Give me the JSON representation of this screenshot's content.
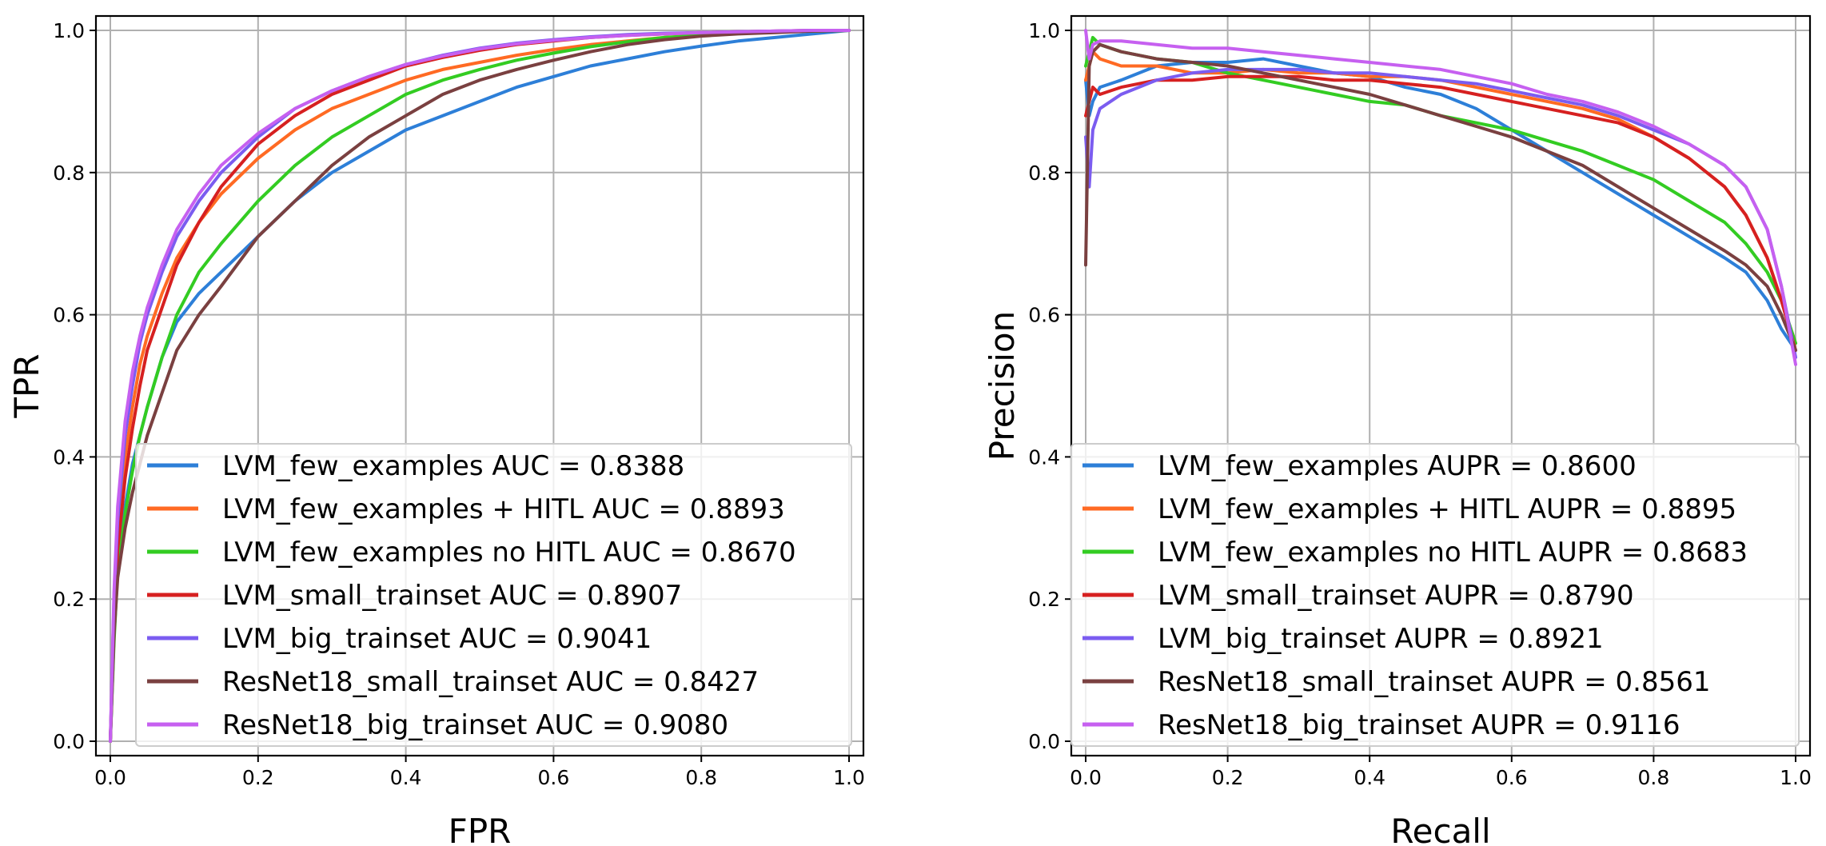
{
  "chart_data": [
    {
      "type": "line",
      "xlabel": "FPR",
      "ylabel": "TPR",
      "xlim": [
        0.0,
        1.0
      ],
      "ylim": [
        0.0,
        1.0
      ],
      "xticks": [
        "0.0",
        "0.2",
        "0.4",
        "0.6",
        "0.8",
        "1.0"
      ],
      "yticks": [
        "0.0",
        "0.2",
        "0.4",
        "0.6",
        "0.8",
        "1.0"
      ],
      "grid": true,
      "legend_position": "lower-right",
      "series": [
        {
          "name": "LVM_few_examples AUC = 0.8388",
          "color": "#2d7fd8",
          "x": [
            0,
            0.005,
            0.01,
            0.02,
            0.03,
            0.04,
            0.05,
            0.07,
            0.09,
            0.12,
            0.15,
            0.2,
            0.25,
            0.3,
            0.35,
            0.4,
            0.45,
            0.5,
            0.55,
            0.6,
            0.65,
            0.7,
            0.75,
            0.8,
            0.85,
            0.9,
            0.95,
            1.0
          ],
          "y": [
            0,
            0.15,
            0.25,
            0.33,
            0.39,
            0.43,
            0.47,
            0.54,
            0.59,
            0.63,
            0.66,
            0.71,
            0.76,
            0.8,
            0.83,
            0.86,
            0.88,
            0.9,
            0.92,
            0.935,
            0.95,
            0.96,
            0.97,
            0.978,
            0.985,
            0.99,
            0.995,
            1.0
          ]
        },
        {
          "name": "LVM_few_examples + HITL AUC = 0.8893",
          "color": "#ff6a23",
          "x": [
            0,
            0.005,
            0.01,
            0.02,
            0.03,
            0.04,
            0.05,
            0.07,
            0.09,
            0.12,
            0.15,
            0.2,
            0.25,
            0.3,
            0.35,
            0.4,
            0.45,
            0.5,
            0.55,
            0.6,
            0.65,
            0.7,
            0.75,
            0.8,
            0.85,
            0.9,
            0.95,
            1.0
          ],
          "y": [
            0,
            0.18,
            0.29,
            0.4,
            0.47,
            0.53,
            0.57,
            0.63,
            0.68,
            0.73,
            0.77,
            0.82,
            0.86,
            0.89,
            0.91,
            0.93,
            0.945,
            0.955,
            0.965,
            0.973,
            0.98,
            0.985,
            0.99,
            0.993,
            0.996,
            0.998,
            0.999,
            1.0
          ]
        },
        {
          "name": "LVM_few_examples no HITL AUC = 0.8670",
          "color": "#33cc22",
          "x": [
            0,
            0.005,
            0.01,
            0.02,
            0.03,
            0.04,
            0.05,
            0.07,
            0.09,
            0.12,
            0.15,
            0.2,
            0.25,
            0.3,
            0.35,
            0.4,
            0.45,
            0.5,
            0.55,
            0.6,
            0.65,
            0.7,
            0.75,
            0.8,
            0.85,
            0.9,
            0.95,
            1.0
          ],
          "y": [
            0,
            0.14,
            0.24,
            0.32,
            0.38,
            0.43,
            0.47,
            0.54,
            0.6,
            0.66,
            0.7,
            0.76,
            0.81,
            0.85,
            0.88,
            0.91,
            0.93,
            0.945,
            0.958,
            0.968,
            0.977,
            0.984,
            0.99,
            0.993,
            0.996,
            0.998,
            0.999,
            1.0
          ]
        },
        {
          "name": "LVM_small_trainset AUC = 0.8907",
          "color": "#d62020",
          "x": [
            0,
            0.005,
            0.01,
            0.02,
            0.03,
            0.04,
            0.05,
            0.07,
            0.09,
            0.12,
            0.15,
            0.2,
            0.25,
            0.3,
            0.35,
            0.4,
            0.45,
            0.5,
            0.55,
            0.6,
            0.65,
            0.7,
            0.75,
            0.8,
            0.85,
            0.9,
            0.95,
            1.0
          ],
          "y": [
            0,
            0.17,
            0.27,
            0.37,
            0.44,
            0.5,
            0.55,
            0.61,
            0.67,
            0.73,
            0.78,
            0.84,
            0.88,
            0.91,
            0.93,
            0.95,
            0.962,
            0.972,
            0.98,
            0.985,
            0.99,
            0.993,
            0.995,
            0.997,
            0.998,
            0.999,
            1.0,
            1.0
          ]
        },
        {
          "name": "LVM_big_trainset AUC = 0.9041",
          "color": "#7b5cf0",
          "x": [
            0,
            0.005,
            0.01,
            0.02,
            0.03,
            0.04,
            0.05,
            0.07,
            0.09,
            0.12,
            0.15,
            0.2,
            0.25,
            0.3,
            0.35,
            0.4,
            0.45,
            0.5,
            0.55,
            0.6,
            0.65,
            0.7,
            0.75,
            0.8,
            0.85,
            0.9,
            0.95,
            1.0
          ],
          "y": [
            0,
            0.2,
            0.31,
            0.43,
            0.5,
            0.56,
            0.6,
            0.66,
            0.71,
            0.76,
            0.8,
            0.85,
            0.89,
            0.915,
            0.935,
            0.952,
            0.965,
            0.975,
            0.982,
            0.987,
            0.991,
            0.994,
            0.996,
            0.997,
            0.998,
            0.999,
            1.0,
            1.0
          ]
        },
        {
          "name": "ResNet18_small_trainset AUC = 0.8427",
          "color": "#7a4040",
          "x": [
            0,
            0.005,
            0.01,
            0.02,
            0.03,
            0.04,
            0.05,
            0.07,
            0.09,
            0.12,
            0.15,
            0.2,
            0.25,
            0.3,
            0.35,
            0.4,
            0.45,
            0.5,
            0.55,
            0.6,
            0.65,
            0.7,
            0.75,
            0.8,
            0.85,
            0.9,
            0.95,
            1.0
          ],
          "y": [
            0,
            0.15,
            0.23,
            0.3,
            0.35,
            0.39,
            0.43,
            0.49,
            0.55,
            0.6,
            0.64,
            0.71,
            0.76,
            0.81,
            0.85,
            0.88,
            0.91,
            0.93,
            0.945,
            0.958,
            0.97,
            0.98,
            0.987,
            0.992,
            0.995,
            0.997,
            0.999,
            1.0
          ]
        },
        {
          "name": "ResNet18_big_trainset AUC = 0.9080",
          "color": "#c660f0",
          "x": [
            0,
            0.005,
            0.01,
            0.02,
            0.03,
            0.04,
            0.05,
            0.07,
            0.09,
            0.12,
            0.15,
            0.2,
            0.25,
            0.3,
            0.35,
            0.4,
            0.45,
            0.5,
            0.55,
            0.6,
            0.65,
            0.7,
            0.75,
            0.8,
            0.85,
            0.9,
            0.95,
            1.0
          ],
          "y": [
            0,
            0.21,
            0.33,
            0.45,
            0.52,
            0.57,
            0.61,
            0.67,
            0.72,
            0.77,
            0.81,
            0.855,
            0.89,
            0.915,
            0.935,
            0.952,
            0.964,
            0.974,
            0.981,
            0.986,
            0.99,
            0.993,
            0.995,
            0.997,
            0.998,
            0.999,
            1.0,
            1.0
          ]
        }
      ]
    },
    {
      "type": "line",
      "xlabel": "Recall",
      "ylabel": "Precision",
      "xlim": [
        0.0,
        1.0
      ],
      "ylim": [
        0.0,
        1.0
      ],
      "xticks": [
        "0.0",
        "0.2",
        "0.4",
        "0.6",
        "0.8",
        "1.0"
      ],
      "yticks": [
        "0.0",
        "0.2",
        "0.4",
        "0.6",
        "0.8",
        "1.0"
      ],
      "grid": true,
      "legend_position": "lower-right",
      "series": [
        {
          "name": "LVM_few_examples AUPR = 0.8600",
          "color": "#2d7fd8",
          "x": [
            0.0,
            0.005,
            0.01,
            0.02,
            0.05,
            0.1,
            0.15,
            0.2,
            0.25,
            0.3,
            0.35,
            0.4,
            0.45,
            0.5,
            0.55,
            0.6,
            0.65,
            0.7,
            0.75,
            0.8,
            0.85,
            0.9,
            0.93,
            0.96,
            0.98,
            1.0
          ],
          "y": [
            0.93,
            0.88,
            0.9,
            0.92,
            0.93,
            0.95,
            0.955,
            0.955,
            0.96,
            0.95,
            0.94,
            0.935,
            0.92,
            0.91,
            0.89,
            0.86,
            0.83,
            0.8,
            0.77,
            0.74,
            0.71,
            0.68,
            0.66,
            0.62,
            0.58,
            0.55
          ]
        },
        {
          "name": "LVM_few_examples + HITL AUPR = 0.8895",
          "color": "#ff6a23",
          "x": [
            0.0,
            0.005,
            0.01,
            0.02,
            0.05,
            0.1,
            0.15,
            0.2,
            0.25,
            0.3,
            0.35,
            0.4,
            0.45,
            0.5,
            0.55,
            0.6,
            0.65,
            0.7,
            0.75,
            0.8,
            0.85,
            0.9,
            0.93,
            0.96,
            0.98,
            1.0
          ],
          "y": [
            0.93,
            0.95,
            0.97,
            0.96,
            0.95,
            0.95,
            0.94,
            0.94,
            0.945,
            0.94,
            0.94,
            0.935,
            0.935,
            0.93,
            0.92,
            0.91,
            0.9,
            0.89,
            0.875,
            0.85,
            0.82,
            0.78,
            0.74,
            0.68,
            0.62,
            0.56
          ]
        },
        {
          "name": "LVM_few_examples no HITL AUPR = 0.8683",
          "color": "#33cc22",
          "x": [
            0.0,
            0.005,
            0.01,
            0.02,
            0.05,
            0.1,
            0.15,
            0.2,
            0.25,
            0.3,
            0.35,
            0.4,
            0.45,
            0.5,
            0.55,
            0.6,
            0.65,
            0.7,
            0.75,
            0.8,
            0.85,
            0.9,
            0.93,
            0.96,
            0.98,
            1.0
          ],
          "y": [
            0.95,
            0.97,
            0.99,
            0.98,
            0.97,
            0.96,
            0.955,
            0.94,
            0.93,
            0.92,
            0.91,
            0.9,
            0.895,
            0.88,
            0.87,
            0.86,
            0.845,
            0.83,
            0.81,
            0.79,
            0.76,
            0.73,
            0.7,
            0.66,
            0.62,
            0.56
          ]
        },
        {
          "name": "LVM_small_trainset AUPR = 0.8790",
          "color": "#d62020",
          "x": [
            0.0,
            0.005,
            0.01,
            0.02,
            0.05,
            0.1,
            0.15,
            0.2,
            0.25,
            0.3,
            0.35,
            0.4,
            0.45,
            0.5,
            0.55,
            0.6,
            0.65,
            0.7,
            0.75,
            0.8,
            0.85,
            0.9,
            0.93,
            0.96,
            0.98,
            1.0
          ],
          "y": [
            0.88,
            0.9,
            0.92,
            0.91,
            0.92,
            0.93,
            0.93,
            0.935,
            0.935,
            0.935,
            0.93,
            0.93,
            0.925,
            0.92,
            0.91,
            0.9,
            0.89,
            0.88,
            0.87,
            0.85,
            0.82,
            0.78,
            0.74,
            0.68,
            0.62,
            0.55
          ]
        },
        {
          "name": "LVM_big_trainset AUPR = 0.8921",
          "color": "#7b5cf0",
          "x": [
            0.0,
            0.005,
            0.01,
            0.02,
            0.05,
            0.1,
            0.15,
            0.2,
            0.25,
            0.3,
            0.35,
            0.4,
            0.45,
            0.5,
            0.55,
            0.6,
            0.65,
            0.7,
            0.75,
            0.8,
            0.85,
            0.9,
            0.93,
            0.96,
            0.98,
            1.0
          ],
          "y": [
            0.85,
            0.78,
            0.86,
            0.89,
            0.91,
            0.93,
            0.94,
            0.945,
            0.945,
            0.945,
            0.94,
            0.94,
            0.935,
            0.93,
            0.925,
            0.915,
            0.905,
            0.895,
            0.88,
            0.86,
            0.84,
            0.81,
            0.78,
            0.72,
            0.64,
            0.54
          ]
        },
        {
          "name": "ResNet18_small_trainset AUPR = 0.8561",
          "color": "#7a4040",
          "x": [
            0.0,
            0.005,
            0.01,
            0.02,
            0.05,
            0.1,
            0.15,
            0.2,
            0.25,
            0.3,
            0.35,
            0.4,
            0.45,
            0.5,
            0.55,
            0.6,
            0.65,
            0.7,
            0.75,
            0.8,
            0.85,
            0.9,
            0.93,
            0.96,
            0.98,
            1.0
          ],
          "y": [
            0.67,
            0.95,
            0.97,
            0.98,
            0.97,
            0.96,
            0.955,
            0.95,
            0.94,
            0.93,
            0.92,
            0.91,
            0.895,
            0.88,
            0.865,
            0.85,
            0.83,
            0.81,
            0.78,
            0.75,
            0.72,
            0.69,
            0.67,
            0.64,
            0.6,
            0.55
          ]
        },
        {
          "name": "ResNet18_big_trainset AUPR = 0.9116",
          "color": "#c660f0",
          "x": [
            0.0,
            0.005,
            0.01,
            0.02,
            0.05,
            0.1,
            0.15,
            0.2,
            0.25,
            0.3,
            0.35,
            0.4,
            0.45,
            0.5,
            0.55,
            0.6,
            0.65,
            0.7,
            0.75,
            0.8,
            0.85,
            0.9,
            0.93,
            0.96,
            0.98,
            1.0
          ],
          "y": [
            1.0,
            0.96,
            0.98,
            0.985,
            0.985,
            0.98,
            0.975,
            0.975,
            0.97,
            0.965,
            0.96,
            0.955,
            0.95,
            0.945,
            0.935,
            0.925,
            0.91,
            0.9,
            0.885,
            0.865,
            0.84,
            0.81,
            0.78,
            0.72,
            0.64,
            0.53
          ]
        }
      ]
    }
  ]
}
